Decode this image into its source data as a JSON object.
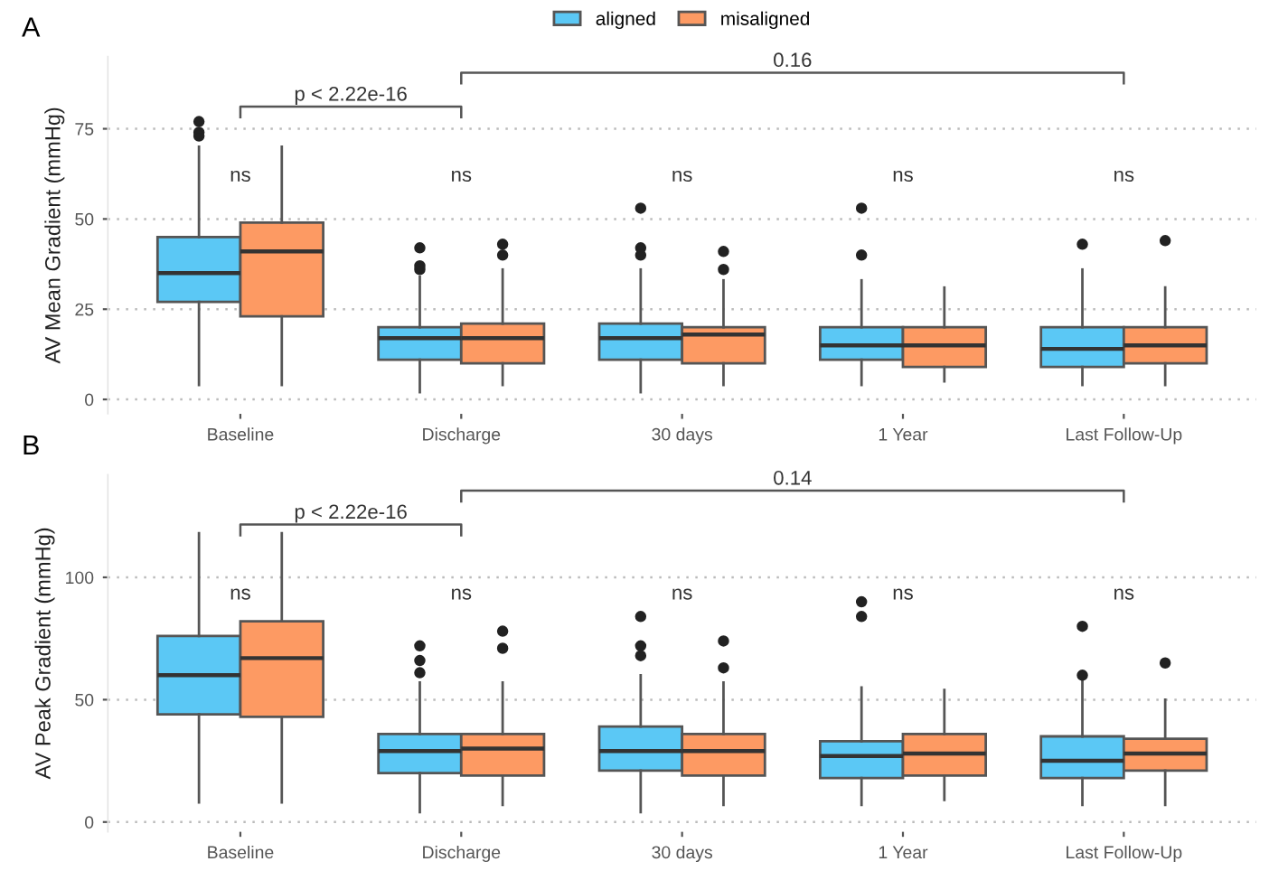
{
  "chart_data": [
    {
      "type": "box",
      "title": "A",
      "ylabel": "AV Mean Gradient (mmHg)",
      "categories": [
        "Baseline",
        "Discharge",
        "30 days",
        "1 Year",
        "Last Follow-Up"
      ],
      "ylim": [
        -4,
        95
      ],
      "yticks": [
        0,
        25,
        50,
        75
      ],
      "grid": "y",
      "legend": "top",
      "series": [
        {
          "name": "aligned",
          "color": "#5bc8f5",
          "boxes": [
            {
              "low": 4,
              "q1": 27,
              "median": 35,
              "q3": 45,
              "high": 70,
              "outliers": [
                77,
                74,
                73
              ]
            },
            {
              "low": 2,
              "q1": 11,
              "median": 17,
              "q3": 20,
              "high": 34,
              "outliers": [
                42,
                37,
                36
              ]
            },
            {
              "low": 2,
              "q1": 11,
              "median": 17,
              "q3": 21,
              "high": 36,
              "outliers": [
                53,
                42,
                40
              ]
            },
            {
              "low": 4,
              "q1": 11,
              "median": 15,
              "q3": 20,
              "high": 33,
              "outliers": [
                53,
                40
              ]
            },
            {
              "low": 4,
              "q1": 9,
              "median": 14,
              "q3": 20,
              "high": 36,
              "outliers": [
                43
              ]
            }
          ]
        },
        {
          "name": "misaligned",
          "color": "#fd9a63",
          "boxes": [
            {
              "low": 4,
              "q1": 23,
              "median": 41,
              "q3": 49,
              "high": 70
            },
            {
              "low": 4,
              "q1": 10,
              "median": 17,
              "q3": 21,
              "high": 36,
              "outliers": [
                43,
                40
              ]
            },
            {
              "low": 4,
              "q1": 10,
              "median": 18,
              "q3": 20,
              "high": 33,
              "outliers": [
                41,
                36
              ]
            },
            {
              "low": 5,
              "q1": 9,
              "median": 15,
              "q3": 20,
              "high": 31
            },
            {
              "low": 4,
              "q1": 10,
              "median": 15,
              "q3": 20,
              "high": 31,
              "outliers": [
                44
              ]
            }
          ]
        }
      ],
      "annotations": [
        "ns",
        "ns",
        "ns",
        "ns",
        "ns",
        "p < 2.22e-16",
        "0.16"
      ]
    },
    {
      "type": "box",
      "title": "B",
      "ylabel": "AV Peak Gradient (mmHg)",
      "categories": [
        "Baseline",
        "Discharge",
        "30 days",
        "1 Year",
        "Last Follow-Up"
      ],
      "ylim": [
        -4,
        142
      ],
      "yticks": [
        0,
        50,
        100
      ],
      "grid": "y",
      "series": [
        {
          "color": "#5bc8f5",
          "boxes": [
            {
              "low": 8,
              "q1": 44,
              "median": 60,
              "q3": 76,
              "high": 118
            },
            {
              "low": 4,
              "q1": 20,
              "median": 29,
              "q3": 36,
              "high": 57,
              "outliers": [
                72,
                66,
                61
              ]
            },
            {
              "low": 4,
              "q1": 21,
              "median": 29,
              "q3": 39,
              "high": 60,
              "outliers": [
                84,
                72,
                68
              ]
            },
            {
              "low": 7,
              "q1": 18,
              "median": 27,
              "q3": 33,
              "high": 55,
              "outliers": [
                90,
                84
              ]
            },
            {
              "low": 7,
              "q1": 18,
              "median": 25,
              "q3": 35,
              "high": 58,
              "outliers": [
                80,
                60
              ]
            }
          ]
        },
        {
          "color": "#fd9a63",
          "boxes": [
            {
              "low": 8,
              "q1": 43,
              "median": 67,
              "q3": 82,
              "high": 118
            },
            {
              "low": 7,
              "q1": 19,
              "median": 30,
              "q3": 36,
              "high": 57,
              "outliers": [
                78,
                71
              ]
            },
            {
              "low": 7,
              "q1": 19,
              "median": 29,
              "q3": 36,
              "high": 57,
              "outliers": [
                74,
                63
              ]
            },
            {
              "low": 9,
              "q1": 19,
              "median": 28,
              "q3": 36,
              "high": 54
            },
            {
              "low": 7,
              "q1": 21,
              "median": 28,
              "q3": 34,
              "high": 50,
              "outliers": [
                65
              ]
            }
          ]
        }
      ],
      "annotations": [
        "ns",
        "ns",
        "ns",
        "ns",
        "ns",
        "p < 2.22e-16",
        "0.14"
      ]
    }
  ]
}
